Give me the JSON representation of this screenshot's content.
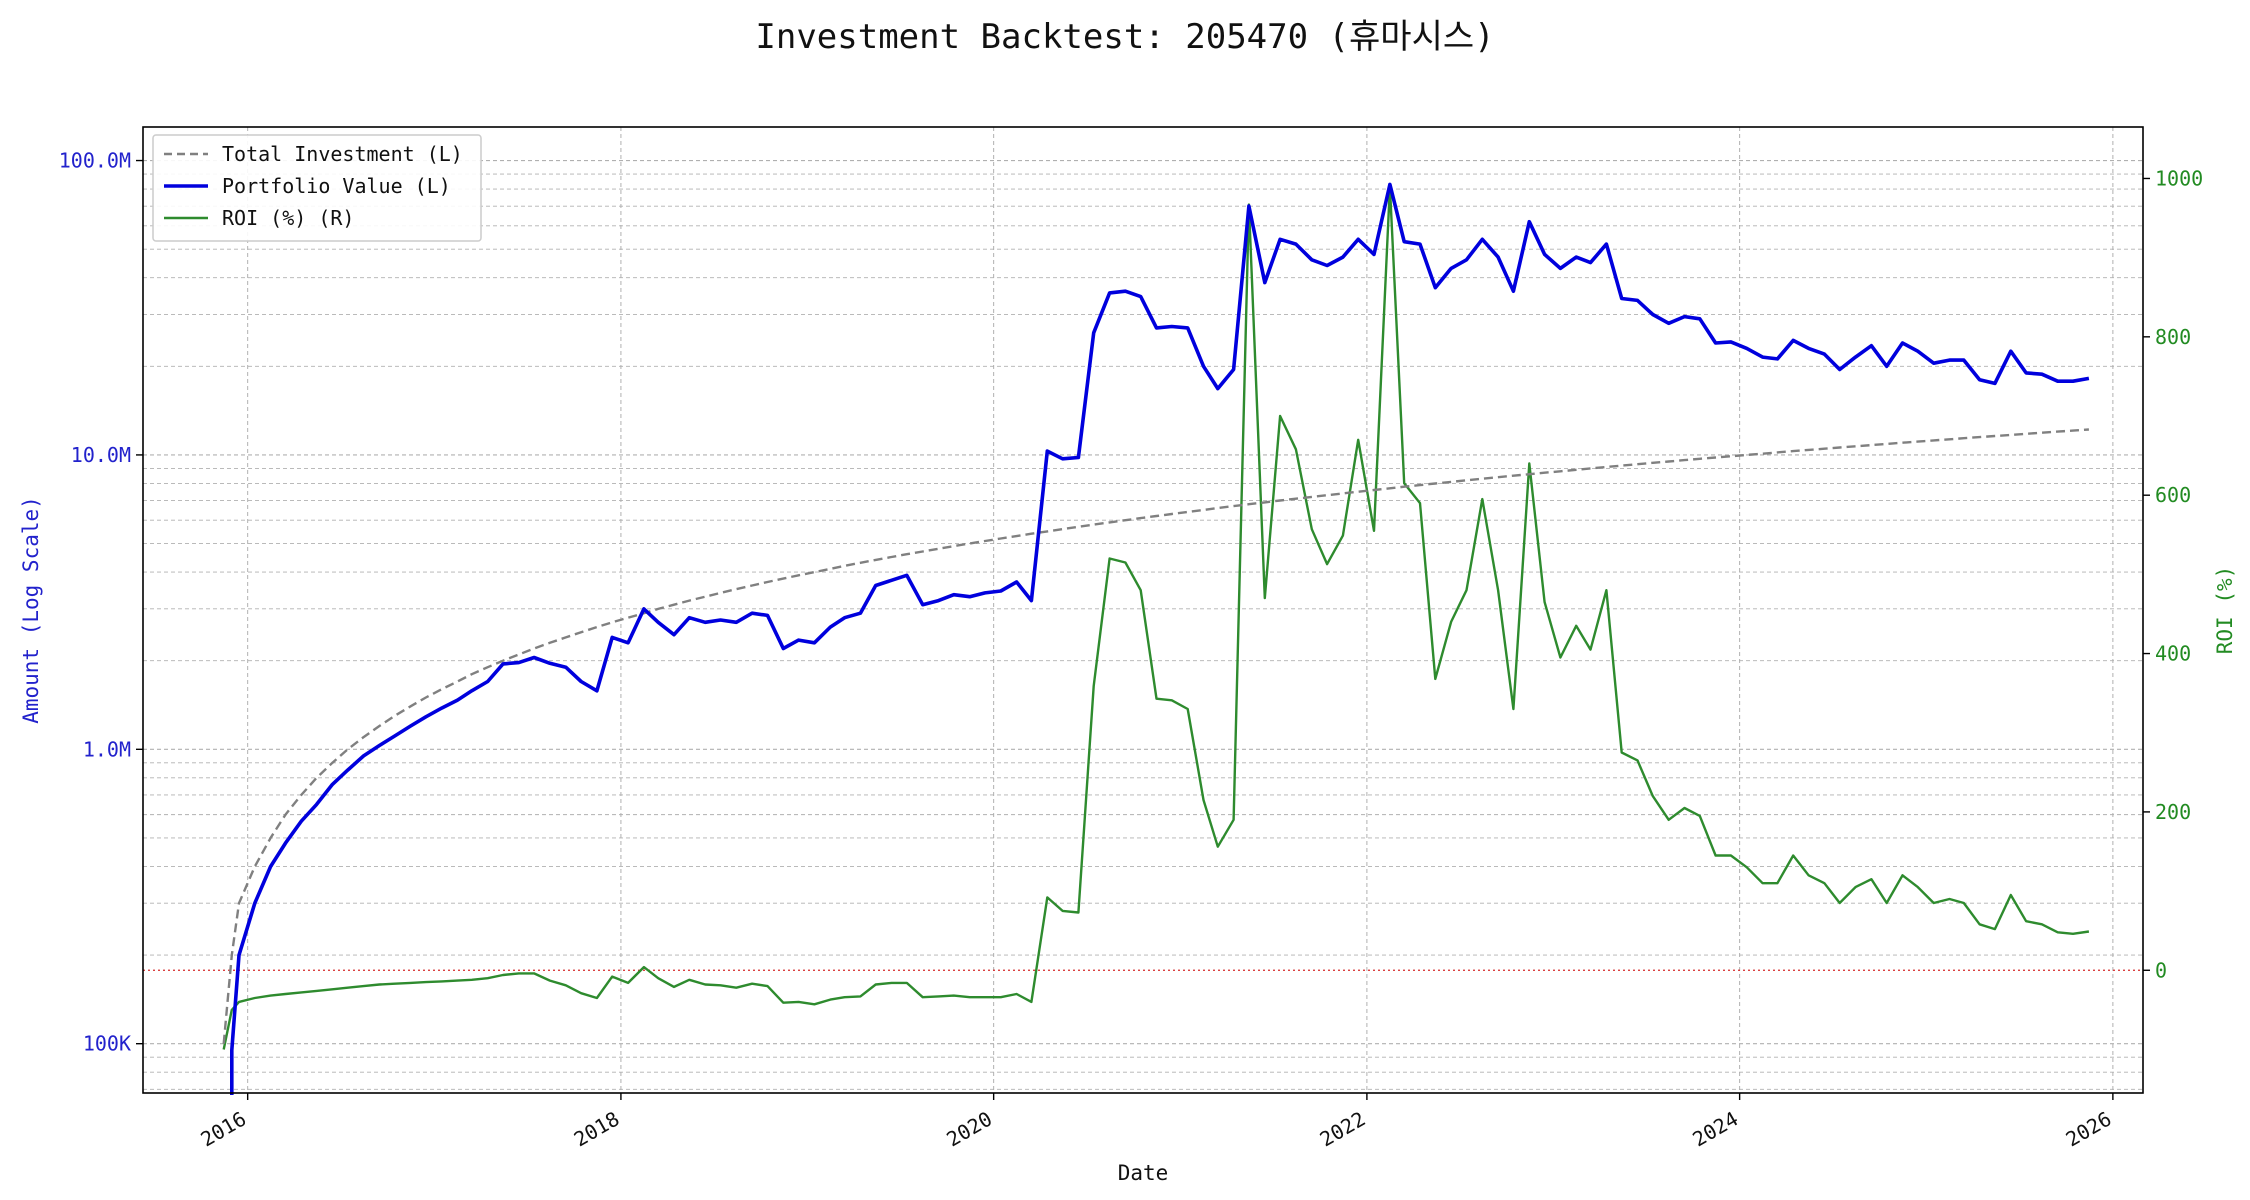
{
  "chart_data": {
    "type": "line",
    "title": "Investment Backtest: 205470 (휴마시스)",
    "xlabel": "Date",
    "ylabel_left": "Amount (Log Scale)",
    "ylabel_right": "ROI (%)",
    "x_range": [
      "2015-06-10",
      "2026-03-01"
    ],
    "ylim_left": [
      68000,
      130000000
    ],
    "ylim_right": [
      -155,
      1065
    ],
    "y_scale_left": "log",
    "grid": true,
    "legend_position": "top-left",
    "x_ticks": [
      "2016",
      "2018",
      "2020",
      "2022",
      "2024",
      "2026"
    ],
    "y_ticks_left": [
      "100K",
      "1.0M",
      "10.0M",
      "100.0M"
    ],
    "y_ticks_right": [
      "0",
      "200",
      "400",
      "600",
      "800",
      "1000"
    ],
    "reference_line_right": 0,
    "colors": {
      "investment": "#808080",
      "portfolio": "#0000dd",
      "roi": "#2e8b2e",
      "reference": "#d62728",
      "left_axis": "#2222cc",
      "right_axis": "#228b22"
    },
    "dates": [
      "2015-11-15",
      "2015-12-01",
      "2015-12-15",
      "2016-01-15",
      "2016-02-15",
      "2016-03-15",
      "2016-04-15",
      "2016-05-15",
      "2016-06-15",
      "2016-07-15",
      "2016-08-15",
      "2016-09-15",
      "2016-10-15",
      "2016-11-15",
      "2016-12-15",
      "2017-01-15",
      "2017-02-15",
      "2017-03-15",
      "2017-04-15",
      "2017-05-15",
      "2017-06-15",
      "2017-07-15",
      "2017-08-15",
      "2017-09-15",
      "2017-10-15",
      "2017-11-15",
      "2017-12-15",
      "2018-01-15",
      "2018-02-15",
      "2018-03-15",
      "2018-04-15",
      "2018-05-15",
      "2018-06-15",
      "2018-07-15",
      "2018-08-15",
      "2018-09-15",
      "2018-10-15",
      "2018-11-15",
      "2018-12-15",
      "2019-01-15",
      "2019-02-15",
      "2019-03-15",
      "2019-04-15",
      "2019-05-15",
      "2019-06-15",
      "2019-07-15",
      "2019-08-15",
      "2019-09-15",
      "2019-10-15",
      "2019-11-15",
      "2019-12-15",
      "2020-01-15",
      "2020-02-15",
      "2020-03-15",
      "2020-04-15",
      "2020-05-15",
      "2020-06-15",
      "2020-07-15",
      "2020-08-15",
      "2020-09-15",
      "2020-10-15",
      "2020-11-15",
      "2020-12-15",
      "2021-01-15",
      "2021-02-15",
      "2021-03-15",
      "2021-04-15",
      "2021-05-15",
      "2021-06-15",
      "2021-07-15",
      "2021-08-15",
      "2021-09-15",
      "2021-10-15",
      "2021-11-15",
      "2021-12-15",
      "2022-01-15",
      "2022-02-15",
      "2022-03-15",
      "2022-04-15",
      "2022-05-15",
      "2022-06-15",
      "2022-07-15",
      "2022-08-15",
      "2022-09-15",
      "2022-10-15",
      "2022-11-15",
      "2022-12-15",
      "2023-01-15",
      "2023-02-15",
      "2023-03-15",
      "2023-04-15",
      "2023-05-15",
      "2023-06-15",
      "2023-07-15",
      "2023-08-15",
      "2023-09-15",
      "2023-10-15",
      "2023-11-15",
      "2023-12-15",
      "2024-01-15",
      "2024-02-15",
      "2024-03-15",
      "2024-04-15",
      "2024-05-15",
      "2024-06-15",
      "2024-07-15",
      "2024-08-15",
      "2024-09-15",
      "2024-10-15",
      "2024-11-15",
      "2024-12-15",
      "2025-01-15",
      "2025-02-15",
      "2025-03-15",
      "2025-04-15",
      "2025-05-15",
      "2025-06-15",
      "2025-07-15",
      "2025-08-15",
      "2025-09-15",
      "2025-10-15",
      "2025-11-15"
    ],
    "series": [
      {
        "name": "Total Investment (L)",
        "axis": "left",
        "style": "dashed",
        "values": [
          100000,
          200000,
          300000,
          400000,
          500000,
          600000,
          700000,
          800000,
          900000,
          1000000,
          1100000,
          1200000,
          1300000,
          1400000,
          1500000,
          1600000,
          1700000,
          1800000,
          1900000,
          2000000,
          2100000,
          2200000,
          2300000,
          2400000,
          2500000,
          2600000,
          2700000,
          2800000,
          2900000,
          3000000,
          3100000,
          3200000,
          3300000,
          3400000,
          3500000,
          3600000,
          3700000,
          3800000,
          3900000,
          4000000,
          4100000,
          4200000,
          4300000,
          4400000,
          4500000,
          4600000,
          4700000,
          4800000,
          4900000,
          5000000,
          5100000,
          5200000,
          5300000,
          5400000,
          5500000,
          5600000,
          5700000,
          5800000,
          5900000,
          6000000,
          6100000,
          6200000,
          6300000,
          6400000,
          6500000,
          6600000,
          6700000,
          6800000,
          6900000,
          7000000,
          7100000,
          7200000,
          7300000,
          7400000,
          7500000,
          7600000,
          7700000,
          7800000,
          7900000,
          8000000,
          8100000,
          8200000,
          8300000,
          8400000,
          8500000,
          8600000,
          8700000,
          8800000,
          8900000,
          9000000,
          9100000,
          9200000,
          9300000,
          9400000,
          9500000,
          9600000,
          9700000,
          9800000,
          9900000,
          10000000,
          10100000,
          10200000,
          10300000,
          10400000,
          10500000,
          10600000,
          10700000,
          10800000,
          10900000,
          11000000,
          11100000,
          11200000,
          11300000,
          11400000,
          11500000,
          11600000,
          11700000,
          11800000,
          11900000,
          12000000,
          12100000,
          12200000
        ]
      },
      {
        "name": "Portfolio Value (L)",
        "axis": "left",
        "style": "solid",
        "values": [
          null,
          95000,
          200000,
          300000,
          400000,
          480000,
          570000,
          650000,
          760000,
          850000,
          950000,
          1030000,
          1110000,
          1200000,
          1290000,
          1380000,
          1470000,
          1580000,
          1700000,
          1950000,
          1970000,
          2050000,
          1960000,
          1900000,
          1700000,
          1580000,
          2400000,
          2300000,
          3000000,
          2700000,
          2450000,
          2800000,
          2700000,
          2750000,
          2700000,
          2900000,
          2850000,
          2200000,
          2350000,
          2300000,
          2600000,
          2800000,
          2900000,
          3600000,
          3750000,
          3900000,
          3100000,
          3200000,
          3350000,
          3300000,
          3400000,
          3450000,
          3700000,
          3200000,
          10300000,
          9700000,
          9800000,
          26000000,
          35500000,
          36000000,
          34500000,
          27000000,
          27300000,
          27000000,
          20000000,
          16800000,
          19500000,
          70000000,
          38500000,
          54000000,
          52000000,
          46000000,
          44000000,
          47000000,
          54000000,
          48000000,
          83000000,
          53000000,
          52000000,
          37000000,
          43000000,
          46000000,
          54000000,
          47000000,
          36000000,
          62000000,
          48000000,
          43000000,
          47000000,
          45000000,
          52000000,
          34000000,
          33500000,
          30000000,
          28000000,
          29500000,
          29000000,
          24000000,
          24200000,
          23000000,
          21500000,
          21200000,
          24500000,
          23000000,
          22000000,
          19500000,
          21500000,
          23500000,
          20000000,
          24000000,
          22500000,
          20500000,
          21000000,
          21000000,
          18000000,
          17500000,
          22500000,
          19000000,
          18800000,
          17800000,
          17800000,
          18200000
        ]
      },
      {
        "name": "ROI (%) (R)",
        "axis": "right",
        "style": "solid",
        "values": [
          -100,
          -50,
          -40,
          -35,
          -32,
          -30,
          -28,
          -26,
          -24,
          -22,
          -20,
          -18,
          -17,
          -16,
          -15,
          -14,
          -13,
          -12,
          -10,
          -6,
          -4,
          -4,
          -13,
          -19,
          -29,
          -35,
          -8,
          -16,
          4,
          -10,
          -21,
          -12,
          -18,
          -19,
          -22,
          -17,
          -20,
          -41,
          -40,
          -43,
          -37,
          -34,
          -33,
          -18,
          -16,
          -16,
          -34,
          -33,
          -32,
          -34,
          -34,
          -34,
          -30,
          -40,
          92,
          75,
          73,
          359,
          520,
          515,
          480,
          343,
          341,
          330,
          215,
          156,
          190,
          967,
          470,
          700,
          658,
          557,
          513,
          549,
          670,
          555,
          990,
          615,
          590,
          368,
          440,
          480,
          595,
          480,
          330,
          640,
          465,
          395,
          435,
          405,
          480,
          275,
          265,
          220,
          190,
          205,
          195,
          145,
          145,
          130,
          110,
          110,
          145,
          120,
          110,
          85,
          105,
          115,
          85,
          120,
          105,
          85,
          90,
          85,
          58,
          52,
          95,
          62,
          58,
          48,
          46,
          49
        ]
      }
    ]
  }
}
